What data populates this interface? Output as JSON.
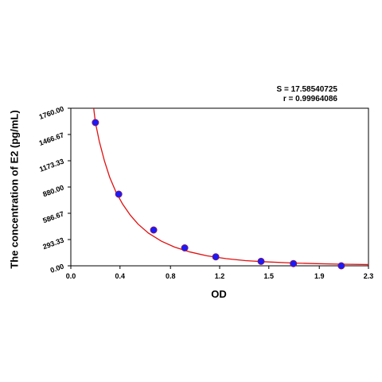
{
  "chart_data": {
    "type": "scatter",
    "title": "",
    "xlabel": "OD",
    "ylabel": "The concentration of E2 (pg/mL)",
    "xlim": [
      0.0,
      2.3
    ],
    "ylim": [
      0.0,
      1760.0
    ],
    "x_ticks": [
      "0.0",
      "0.4",
      "0.8",
      "1.2",
      "1.5",
      "1.9",
      "2.3"
    ],
    "x_tick_values": [
      0.0,
      0.38,
      0.77,
      1.15,
      1.53,
      1.92,
      2.3
    ],
    "y_ticks": [
      "0.00",
      "293.33",
      "586.67",
      "880.00",
      "1173.33",
      "1466.67",
      "1760.00"
    ],
    "y_tick_values": [
      0.0,
      293.33,
      586.67,
      880.0,
      1173.33,
      1466.67,
      1760.0
    ],
    "grid": false,
    "stats": {
      "s": "S = 17.58540725",
      "r": "r = 0.99964086"
    },
    "series": [
      {
        "kind": "points",
        "x": [
          0.19,
          0.37,
          0.64,
          0.88,
          1.12,
          1.47,
          1.72,
          2.09
        ],
        "y": [
          1600,
          800,
          400,
          200,
          100,
          50,
          25,
          0
        ],
        "color": "#1a1aff",
        "edge_color": "#7a1a6a"
      },
      {
        "kind": "fit",
        "x": [
          0.17,
          0.19,
          0.22,
          0.26,
          0.3,
          0.35,
          0.4,
          0.46,
          0.52,
          0.6,
          0.7,
          0.8,
          0.92,
          1.05,
          1.2,
          1.35,
          1.5,
          1.7,
          1.9,
          2.1,
          2.3
        ],
        "y": [
          1840,
          1600,
          1390,
          1170,
          990,
          820,
          690,
          565,
          465,
          365,
          275,
          210,
          155,
          112,
          80,
          58,
          45,
          32,
          24,
          18,
          14
        ],
        "color": "#e01010"
      }
    ]
  }
}
